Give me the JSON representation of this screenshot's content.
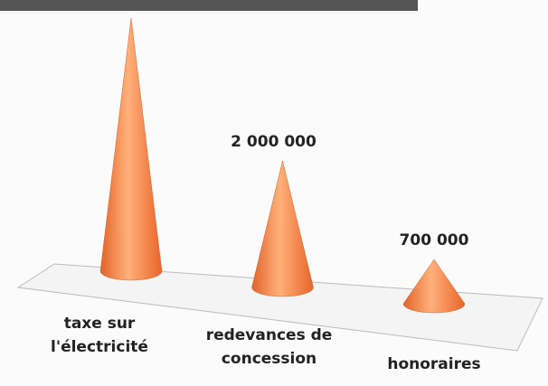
{
  "chart_data": {
    "type": "cone",
    "categories": [
      "taxe sur l'électricité",
      "redevances de concession",
      "honoraires"
    ],
    "values": [
      4000000,
      2000000,
      700000
    ],
    "value_labels": [
      null,
      "2 000 000",
      "700 000"
    ],
    "color": "#f5874a",
    "ylim": [
      0,
      4500000
    ]
  }
}
